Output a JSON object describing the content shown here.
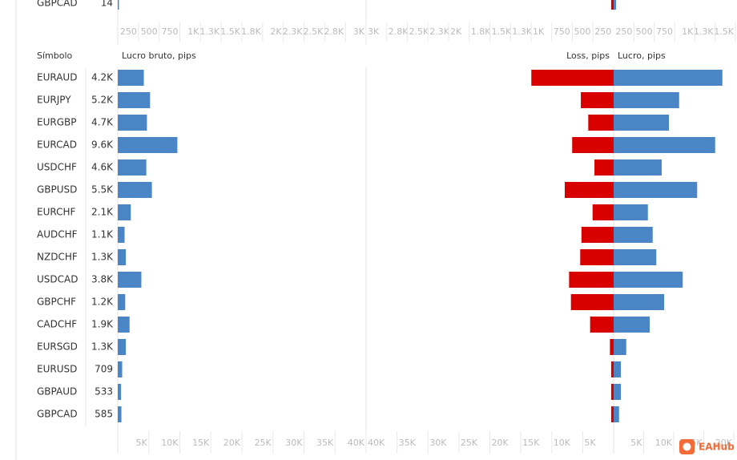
{
  "chart_data": [
    {
      "type": "bar",
      "categories": [
        "GBPCAD"
      ],
      "series": [
        {
          "color": "#4a86c5",
          "values": [
            14
          ],
          "show_values": true,
          "xlim": [
            0,
            3000
          ],
          "xticks": [
            250,
            500,
            750,
            {
              "value": 1000,
              "label": "1K"
            },
            {
              "value": 1250,
              "label": "1.3K"
            },
            {
              "value": 1500,
              "label": "1.5K"
            },
            {
              "value": 1750,
              "label": "1.8K"
            },
            {
              "value": 2000,
              "label": "2K"
            },
            {
              "value": 2250,
              "label": "2.3K"
            },
            {
              "value": 2500,
              "label": "2.5K"
            },
            {
              "value": 2750,
              "label": "2.8K"
            },
            {
              "value": 3000,
              "label": "3K"
            }
          ]
        },
        {
          "color": "#d90000",
          "values": [
            30
          ],
          "xlim": [
            0,
            3000
          ],
          "xticks": [
            {
              "value": 3000,
              "label": "3K"
            },
            {
              "value": 2750,
              "label": "2.8K"
            },
            {
              "value": 2500,
              "label": "2.5K"
            },
            {
              "value": 2250,
              "label": "2.3K"
            },
            {
              "value": 2000,
              "label": "2K"
            },
            {
              "value": 1750,
              "label": "1.8K"
            },
            {
              "value": 1500,
              "label": "1.5K"
            },
            {
              "value": 1250,
              "label": "1.3K"
            },
            {
              "value": 1000,
              "label": "1K"
            },
            750,
            500,
            250
          ]
        },
        {
          "color": "#4a86c5",
          "values": [
            30
          ],
          "xlim": [
            0,
            1500
          ],
          "xticks": [
            250,
            500,
            750,
            {
              "value": 1000,
              "label": "1K"
            },
            {
              "value": 1250,
              "label": "1.3K"
            },
            {
              "value": 1500,
              "label": "1.5K"
            }
          ]
        }
      ]
    },
    {
      "type": "bar",
      "category_header": "Símbolo",
      "categories": [
        "EURAUD",
        "EURJPY",
        "EURGBP",
        "EURCAD",
        "USDCHF",
        "GBPUSD",
        "EURCHF",
        "AUDCHF",
        "NZDCHF",
        "USDCAD",
        "GBPCHF",
        "CADCHF",
        "EURSGD",
        "EURUSD",
        "GBPAUD",
        "GBPCAD"
      ],
      "series": [
        {
          "name": "Lucro bruto, pips",
          "color": "#4a86c5",
          "show_values": true,
          "values": [
            4200,
            5200,
            4700,
            9600,
            4600,
            5500,
            2100,
            1100,
            1300,
            3800,
            1200,
            1900,
            1300,
            709,
            533,
            585
          ],
          "value_labels": [
            "4.2K",
            "5.2K",
            "4.7K",
            "9.6K",
            "4.6K",
            "5.5K",
            "2.1K",
            "1.1K",
            "1.3K",
            "3.8K",
            "1.2K",
            "1.9K",
            "1.3K",
            "709",
            "533",
            "585"
          ],
          "xlim": [
            0,
            40000
          ],
          "xticks": [
            {
              "value": 5000,
              "label": "5K"
            },
            {
              "value": 10000,
              "label": "10K"
            },
            {
              "value": 15000,
              "label": "15K"
            },
            {
              "value": 20000,
              "label": "20K"
            },
            {
              "value": 25000,
              "label": "25K"
            },
            {
              "value": 30000,
              "label": "30K"
            },
            {
              "value": 35000,
              "label": "35K"
            },
            {
              "value": 40000,
              "label": "40K"
            }
          ]
        },
        {
          "name": "Loss, pips",
          "color": "#d90000",
          "values": [
            13300,
            5300,
            4100,
            6700,
            3100,
            7900,
            3400,
            5200,
            5400,
            7200,
            6900,
            3800,
            600,
            400,
            400,
            400
          ],
          "xlim": [
            0,
            40000
          ],
          "xticks": [
            {
              "value": 40000,
              "label": "40K"
            },
            {
              "value": 35000,
              "label": "35K"
            },
            {
              "value": 30000,
              "label": "30K"
            },
            {
              "value": 25000,
              "label": "25K"
            },
            {
              "value": 20000,
              "label": "20K"
            },
            {
              "value": 15000,
              "label": "15K"
            },
            {
              "value": 10000,
              "label": "10K"
            },
            {
              "value": 5000,
              "label": "5K"
            }
          ]
        },
        {
          "name": "Lucro, pips",
          "color": "#4a86c5",
          "values": [
            18100,
            10900,
            9200,
            16900,
            8000,
            13900,
            5700,
            6500,
            7100,
            11500,
            8400,
            6000,
            2100,
            1200,
            1200,
            900
          ],
          "xlim": [
            0,
            20000
          ],
          "xticks": [
            {
              "value": 5000,
              "label": "5K"
            },
            {
              "value": 10000,
              "label": "10K"
            },
            {
              "value": 15000,
              "label": "15K"
            },
            {
              "value": 20000,
              "label": "20K"
            }
          ]
        }
      ]
    }
  ],
  "watermark": "EAHub"
}
